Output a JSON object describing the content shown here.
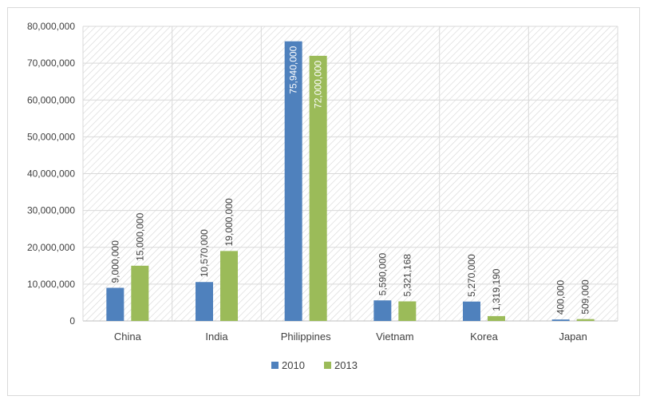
{
  "chart_data": {
    "type": "bar",
    "categories": [
      "China",
      "India",
      "Philippines",
      "Vietnam",
      "Korea",
      "Japan"
    ],
    "series": [
      {
        "name": "2010",
        "color": "#4f81bd",
        "values": [
          9000000,
          10570000,
          75940000,
          5590000,
          5270000,
          400000
        ],
        "labels": [
          "9,000,000",
          "10,570,000",
          "75,940,000",
          "5,590,000",
          "5,270,000",
          "400,000"
        ]
      },
      {
        "name": "2013",
        "color": "#9bbb59",
        "values": [
          15000000,
          19000000,
          72000000,
          5321168,
          1319190,
          509000
        ],
        "labels": [
          "15,000,000",
          "19,000,000",
          "72,000,000",
          "5,321,168",
          "1,319,190",
          "509,000"
        ]
      }
    ],
    "y_ticks": [
      "0",
      "10,000,000",
      "20,000,000",
      "30,000,000",
      "40,000,000",
      "50,000,000",
      "60,000,000",
      "70,000,000",
      "80,000,000"
    ],
    "ylim": [
      0,
      80000000
    ],
    "grid": true,
    "legend_position": "bottom",
    "plot_background": "hatched"
  }
}
